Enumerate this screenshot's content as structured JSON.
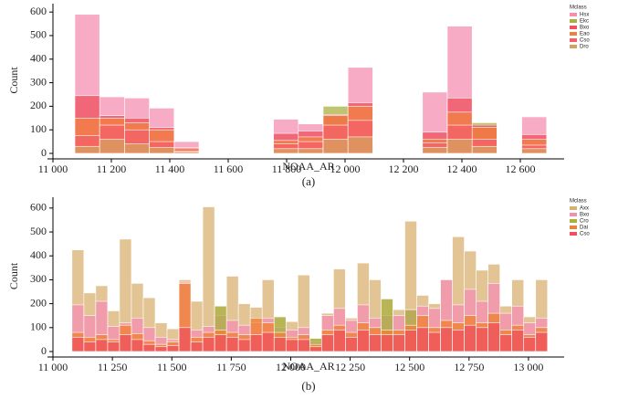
{
  "chart_data": [
    {
      "type": "histogram",
      "panel_label": "(a)",
      "x_label": "NOAA_AR",
      "y_label": "Count",
      "legend_title": "Mclass",
      "bins": [
        11075,
        11160,
        11245,
        11330,
        11415,
        11500,
        11585,
        11670,
        11755,
        11840,
        11925,
        12010,
        12095,
        12180,
        12265,
        12350,
        12435,
        12520,
        12605,
        12690
      ],
      "xlim": [
        11000,
        12750
      ],
      "xticks": [
        {
          "value": 11000,
          "label": "11 000"
        },
        {
          "value": 11200,
          "label": "11 200"
        },
        {
          "value": 11400,
          "label": "11 400"
        },
        {
          "value": 11600,
          "label": "11 600"
        },
        {
          "value": 11800,
          "label": "11 800"
        },
        {
          "value": 12000,
          "label": "12 000"
        },
        {
          "value": 12200,
          "label": "12 200"
        },
        {
          "value": 12400,
          "label": "12 400"
        },
        {
          "value": 12600,
          "label": "12 600"
        }
      ],
      "ylim": [
        0,
        620
      ],
      "yticks": [
        0,
        100,
        200,
        300,
        400,
        500,
        600
      ],
      "series": [
        {
          "name": "Hsx",
          "color": "#f48fb1",
          "values": [
            590,
            240,
            235,
            192,
            50,
            0,
            0,
            0,
            145,
            125,
            0,
            365,
            0,
            0,
            260,
            540,
            125,
            0,
            155
          ]
        },
        {
          "name": "Ekc",
          "color": "#a8b040",
          "values": [
            0,
            0,
            0,
            0,
            0,
            0,
            0,
            0,
            0,
            0,
            200,
            0,
            0,
            0,
            0,
            0,
            130,
            0,
            0
          ]
        },
        {
          "name": "Bxo",
          "color": "#f0505e",
          "values": [
            245,
            160,
            150,
            110,
            25,
            0,
            0,
            0,
            85,
            95,
            165,
            215,
            0,
            0,
            90,
            235,
            120,
            0,
            80
          ]
        },
        {
          "name": "Eao",
          "color": "#f08040",
          "values": [
            150,
            150,
            130,
            100,
            20,
            0,
            0,
            0,
            55,
            70,
            160,
            200,
            0,
            0,
            60,
            175,
            110,
            0,
            60
          ]
        },
        {
          "name": "Cso",
          "color": "#f4606a",
          "values": [
            75,
            120,
            100,
            50,
            10,
            0,
            0,
            0,
            40,
            50,
            120,
            140,
            0,
            0,
            45,
            120,
            60,
            0,
            35
          ]
        },
        {
          "name": "Dro",
          "color": "#d8a060",
          "values": [
            30,
            60,
            40,
            25,
            5,
            0,
            0,
            0,
            20,
            20,
            60,
            70,
            0,
            0,
            25,
            60,
            30,
            0,
            20
          ]
        }
      ]
    },
    {
      "type": "histogram",
      "panel_label": "(b)",
      "x_label": "NOAA_AR",
      "y_label": "Count",
      "legend_title": "Mclass",
      "bins": [
        11080,
        11130,
        11180,
        11230,
        11280,
        11330,
        11380,
        11430,
        11480,
        11530,
        11580,
        11630,
        11680,
        11730,
        11780,
        11830,
        11880,
        11930,
        11980,
        12030,
        12080,
        12130,
        12180,
        12230,
        12280,
        12330,
        12380,
        12430,
        12480,
        12530,
        12580,
        12630,
        12680,
        12730,
        12780,
        12830,
        12880,
        12930,
        12980,
        13030,
        13080
      ],
      "xlim": [
        11000,
        13150
      ],
      "xticks": [
        {
          "value": 11000,
          "label": "11 000"
        },
        {
          "value": 11250,
          "label": "11 250"
        },
        {
          "value": 11500,
          "label": "11 500"
        },
        {
          "value": 11750,
          "label": "11 750"
        },
        {
          "value": 12000,
          "label": "12 000"
        },
        {
          "value": 12250,
          "label": "12 250"
        },
        {
          "value": 12500,
          "label": "12 500"
        },
        {
          "value": 12750,
          "label": "12 750"
        },
        {
          "value": 13000,
          "label": "13 000"
        }
      ],
      "ylim": [
        0,
        630
      ],
      "yticks": [
        0,
        100,
        200,
        300,
        400,
        500,
        600
      ],
      "series": [
        {
          "name": "Axx",
          "color": "#d9b070",
          "values": [
            425,
            245,
            275,
            170,
            470,
            285,
            225,
            120,
            95,
            300,
            210,
            605,
            190,
            315,
            200,
            185,
            300,
            145,
            125,
            320,
            55,
            160,
            345,
            140,
            370,
            300,
            220,
            175,
            545,
            235,
            200,
            300,
            480,
            420,
            340,
            365,
            190,
            300,
            145,
            300
          ]
        },
        {
          "name": "Bxo",
          "color": "#f48fb1",
          "values": [
            195,
            150,
            210,
            105,
            120,
            140,
            100,
            60,
            50,
            290,
            90,
            105,
            150,
            130,
            110,
            120,
            140,
            100,
            90,
            100,
            40,
            150,
            180,
            130,
            195,
            140,
            150,
            150,
            175,
            190,
            180,
            300,
            195,
            260,
            210,
            285,
            160,
            190,
            120,
            140
          ]
        },
        {
          "name": "Cro",
          "color": "#a8b040",
          "values": [
            0,
            0,
            0,
            0,
            0,
            0,
            0,
            0,
            0,
            0,
            0,
            0,
            190,
            0,
            0,
            0,
            0,
            145,
            0,
            0,
            55,
            0,
            0,
            0,
            0,
            0,
            220,
            0,
            175,
            0,
            0,
            0,
            0,
            0,
            0,
            0,
            0,
            0,
            0,
            0
          ]
        },
        {
          "name": "Dai",
          "color": "#f08030",
          "values": [
            80,
            60,
            70,
            50,
            110,
            75,
            45,
            30,
            40,
            285,
            60,
            80,
            90,
            80,
            70,
            140,
            120,
            80,
            60,
            70,
            30,
            90,
            110,
            80,
            120,
            100,
            90,
            90,
            110,
            150,
            100,
            130,
            120,
            150,
            120,
            160,
            90,
            110,
            70,
            100
          ]
        },
        {
          "name": "Cso",
          "color": "#f0505e",
          "values": [
            60,
            40,
            50,
            40,
            70,
            50,
            30,
            20,
            25,
            100,
            40,
            60,
            70,
            60,
            50,
            70,
            80,
            60,
            50,
            50,
            20,
            70,
            90,
            60,
            90,
            70,
            70,
            70,
            90,
            100,
            80,
            100,
            90,
            110,
            100,
            120,
            70,
            90,
            60,
            80
          ]
        }
      ]
    }
  ]
}
